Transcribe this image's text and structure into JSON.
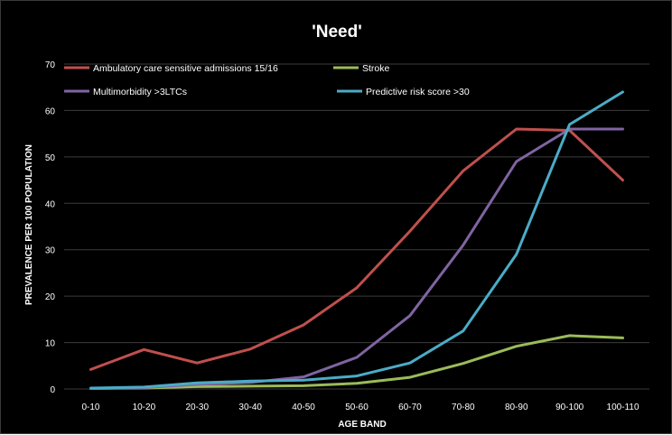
{
  "chart_data": {
    "type": "line",
    "title": "'Need'",
    "xlabel": "AGE BAND",
    "ylabel": "PREVALENCE PER 100 POPULATION",
    "categories": [
      "0-10",
      "10-20",
      "20-30",
      "30-40",
      "40-50",
      "50-60",
      "60-70",
      "70-80",
      "80-90",
      "90-100",
      "100-110"
    ],
    "ylim": [
      0,
      70
    ],
    "yticks": [
      "0",
      "10",
      "20",
      "30",
      "40",
      "50",
      "60",
      "70"
    ],
    "grid": true,
    "legend_position": "top",
    "series": [
      {
        "name": "Ambulatory care sensitive admissions 15/16",
        "color": "#c0504d",
        "values": [
          4.2,
          8.5,
          5.6,
          8.6,
          13.8,
          21.8,
          34.0,
          47.0,
          56.0,
          55.7,
          45.0
        ]
      },
      {
        "name": "Stroke",
        "color": "#9bbb59",
        "values": [
          0.1,
          0.2,
          0.5,
          0.6,
          0.7,
          1.2,
          2.5,
          5.5,
          9.2,
          11.5,
          11.0
        ]
      },
      {
        "name": "Multimorbidity >3LTCs",
        "color": "#8064a2",
        "values": [
          0.1,
          0.3,
          1.0,
          1.4,
          2.6,
          6.8,
          15.8,
          31.0,
          49.0,
          56.0,
          56.0
        ]
      },
      {
        "name": "Predictive risk score >30",
        "color": "#4bacc6",
        "values": [
          0.2,
          0.4,
          1.3,
          1.7,
          1.9,
          2.8,
          5.6,
          12.5,
          29.0,
          57.0,
          64.0
        ]
      }
    ]
  }
}
